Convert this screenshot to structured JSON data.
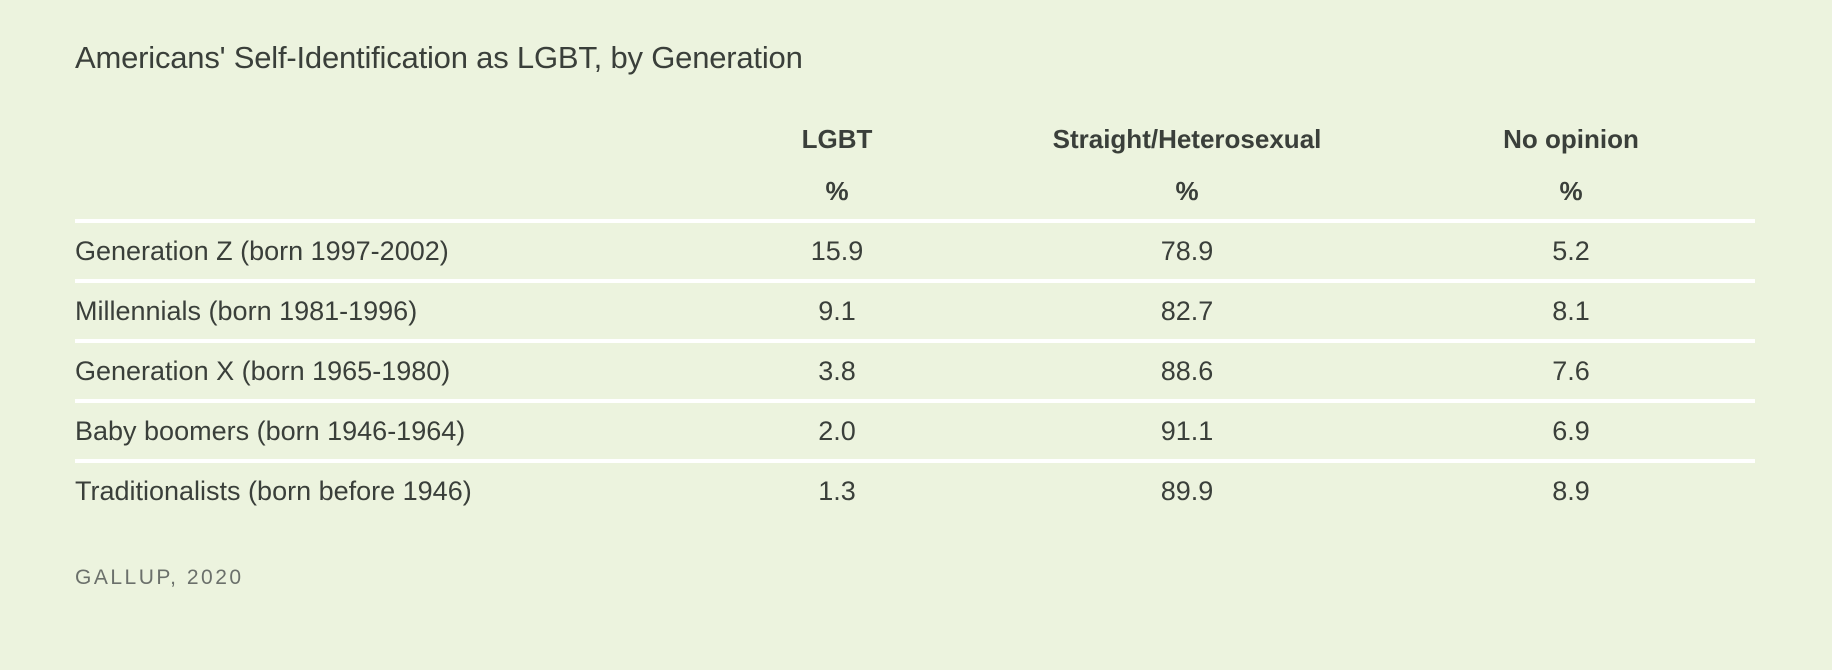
{
  "chart_data": {
    "type": "table",
    "title": "Americans' Self-Identification as LGBT, by Generation",
    "columns": [
      "LGBT",
      "Straight/Heterosexual",
      "No opinion"
    ],
    "units": [
      "%",
      "%",
      "%"
    ],
    "rows": [
      {
        "label": "Generation Z (born 1997-2002)",
        "values": [
          "15.9",
          "78.9",
          "5.2"
        ]
      },
      {
        "label": "Millennials (born 1981-1996)",
        "values": [
          "9.1",
          "82.7",
          "8.1"
        ]
      },
      {
        "label": "Generation X (born 1965-1980)",
        "values": [
          "3.8",
          "88.6",
          "7.6"
        ]
      },
      {
        "label": "Baby boomers (born 1946-1964)",
        "values": [
          "2.0",
          "91.1",
          "6.9"
        ]
      },
      {
        "label": "Traditionalists (born before 1946)",
        "values": [
          "1.3",
          "89.9",
          "8.9"
        ]
      }
    ],
    "source": "GALLUP, 2020"
  },
  "colors": {
    "background": "#ecf3de",
    "text": "#3a3f3a",
    "rule": "#ffffff",
    "source_text": "#6b706b"
  }
}
